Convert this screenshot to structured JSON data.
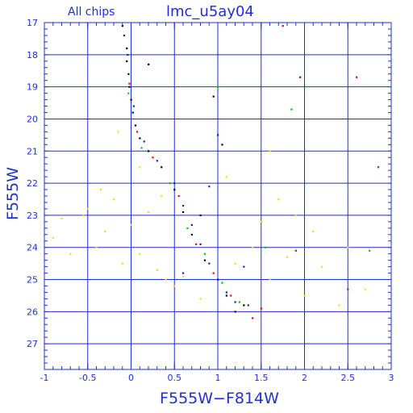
{
  "header": {
    "subtitle": "All chips",
    "title": "lmc_u5ay04"
  },
  "chart_data": {
    "type": "scatter",
    "title": "lmc_u5ay04",
    "subtitle": "All chips",
    "xlabel": "F555W−F814W",
    "ylabel": "F555W",
    "xlim": [
      -1,
      3
    ],
    "ylim": [
      27.8,
      17
    ],
    "y_inverted": true,
    "grid": true,
    "xticks": [
      -1,
      -0.5,
      0,
      0.5,
      1,
      1.5,
      2,
      2.5,
      3
    ],
    "xtick_labels": [
      "-1",
      "-0.5",
      "0",
      "0.5",
      "1",
      "1.5",
      "2",
      "2.5",
      "3"
    ],
    "yticks": [
      17,
      18,
      19,
      20,
      21,
      22,
      23,
      24,
      25,
      26,
      27
    ],
    "ytick_labels": [
      "17",
      "18",
      "19",
      "20",
      "21",
      "22",
      "23",
      "24",
      "25",
      "26",
      "27"
    ],
    "colors": {
      "axis": "#1f2fd6",
      "grid": "#1f2fd6",
      "black": "#000000",
      "red": "#e8001c",
      "green": "#00c800",
      "blue": "#1a1ad6",
      "yellow": "#e6e600"
    },
    "series": [
      {
        "color_key": "black",
        "points": [
          {
            "x": -0.1,
            "y": 17.1
          },
          {
            "x": -0.08,
            "y": 17.4
          },
          {
            "x": -0.05,
            "y": 17.8
          },
          {
            "x": -0.05,
            "y": 18.2
          },
          {
            "x": -0.03,
            "y": 18.6
          },
          {
            "x": -0.02,
            "y": 19.0
          },
          {
            "x": 0.0,
            "y": 19.4
          },
          {
            "x": 0.02,
            "y": 19.8
          },
          {
            "x": 0.05,
            "y": 20.2
          },
          {
            "x": 0.1,
            "y": 20.6
          },
          {
            "x": 0.2,
            "y": 21.0
          },
          {
            "x": 0.35,
            "y": 21.5
          },
          {
            "x": 0.5,
            "y": 22.2
          },
          {
            "x": 0.6,
            "y": 22.9
          },
          {
            "x": 0.7,
            "y": 23.6
          },
          {
            "x": 0.85,
            "y": 24.4
          },
          {
            "x": 1.0,
            "y": 25.0
          },
          {
            "x": 1.1,
            "y": 25.5
          },
          {
            "x": 1.3,
            "y": 25.8
          },
          {
            "x": 0.2,
            "y": 18.3
          },
          {
            "x": 0.95,
            "y": 19.3
          },
          {
            "x": 1.05,
            "y": 20.8
          },
          {
            "x": 0.8,
            "y": 23.0
          },
          {
            "x": 1.2,
            "y": 26.0
          }
        ]
      },
      {
        "color_key": "red",
        "points": [
          {
            "x": -0.02,
            "y": 18.9
          },
          {
            "x": 0.07,
            "y": 20.4
          },
          {
            "x": 0.25,
            "y": 21.2
          },
          {
            "x": 0.55,
            "y": 22.4
          },
          {
            "x": 0.75,
            "y": 23.9
          },
          {
            "x": 0.95,
            "y": 24.8
          },
          {
            "x": 1.15,
            "y": 25.5
          },
          {
            "x": 1.5,
            "y": 25.9
          },
          {
            "x": 1.75,
            "y": 17.1
          },
          {
            "x": 2.6,
            "y": 18.7
          },
          {
            "x": 2.85,
            "y": 21.5
          },
          {
            "x": 1.9,
            "y": 24.1
          },
          {
            "x": 2.5,
            "y": 25.3
          },
          {
            "x": 1.4,
            "y": 26.2
          }
        ]
      },
      {
        "color_key": "green",
        "points": [
          {
            "x": -0.03,
            "y": 19.2
          },
          {
            "x": 0.12,
            "y": 20.9
          },
          {
            "x": 0.45,
            "y": 22.0
          },
          {
            "x": 0.65,
            "y": 23.4
          },
          {
            "x": 0.85,
            "y": 24.2
          },
          {
            "x": 1.05,
            "y": 25.1
          },
          {
            "x": 1.25,
            "y": 25.7
          },
          {
            "x": 1.0,
            "y": 19.0
          },
          {
            "x": 1.85,
            "y": 19.7
          },
          {
            "x": 2.75,
            "y": 24.1
          },
          {
            "x": 1.55,
            "y": 24.0
          },
          {
            "x": 0.5,
            "y": 25.2
          }
        ]
      },
      {
        "color_key": "blue",
        "points": [
          {
            "x": -0.04,
            "y": 18.0
          },
          {
            "x": 0.03,
            "y": 19.6
          },
          {
            "x": 0.15,
            "y": 20.7
          },
          {
            "x": 0.3,
            "y": 21.3
          },
          {
            "x": 0.5,
            "y": 22.0
          },
          {
            "x": 0.6,
            "y": 22.7
          },
          {
            "x": 0.7,
            "y": 23.3
          },
          {
            "x": 0.8,
            "y": 23.9
          },
          {
            "x": 0.9,
            "y": 24.5
          },
          {
            "x": 1.0,
            "y": 25.0
          },
          {
            "x": 1.1,
            "y": 25.4
          },
          {
            "x": 1.2,
            "y": 25.7
          },
          {
            "x": 1.35,
            "y": 25.8
          },
          {
            "x": 1.0,
            "y": 20.5
          },
          {
            "x": 1.95,
            "y": 18.7
          },
          {
            "x": 0.9,
            "y": 22.1
          },
          {
            "x": 1.3,
            "y": 24.6
          },
          {
            "x": 0.6,
            "y": 24.8
          }
        ]
      },
      {
        "color_key": "yellow",
        "points": [
          {
            "x": -0.9,
            "y": 23.7
          },
          {
            "x": -0.8,
            "y": 23.1
          },
          {
            "x": -0.7,
            "y": 24.2
          },
          {
            "x": -0.55,
            "y": 23.0
          },
          {
            "x": -0.5,
            "y": 22.8
          },
          {
            "x": -0.4,
            "y": 24.0
          },
          {
            "x": -0.3,
            "y": 23.5
          },
          {
            "x": -0.2,
            "y": 22.5
          },
          {
            "x": -0.1,
            "y": 24.5
          },
          {
            "x": 0.0,
            "y": 23.3
          },
          {
            "x": 0.1,
            "y": 24.2
          },
          {
            "x": 0.2,
            "y": 22.9
          },
          {
            "x": 0.3,
            "y": 24.7
          },
          {
            "x": 0.4,
            "y": 25.0
          },
          {
            "x": 0.5,
            "y": 25.2
          },
          {
            "x": 0.6,
            "y": 24.9
          },
          {
            "x": 1.2,
            "y": 24.5
          },
          {
            "x": 1.4,
            "y": 24.0
          },
          {
            "x": 1.6,
            "y": 25.0
          },
          {
            "x": 1.8,
            "y": 24.3
          },
          {
            "x": 2.0,
            "y": 25.5
          },
          {
            "x": 2.2,
            "y": 24.6
          },
          {
            "x": 2.4,
            "y": 25.8
          },
          {
            "x": 2.7,
            "y": 25.3
          },
          {
            "x": -0.15,
            "y": 20.4
          },
          {
            "x": 0.1,
            "y": 21.5
          },
          {
            "x": 1.1,
            "y": 21.8
          },
          {
            "x": 1.6,
            "y": 21.0
          },
          {
            "x": 1.7,
            "y": 22.5
          },
          {
            "x": 1.5,
            "y": 23.2
          },
          {
            "x": 2.1,
            "y": 23.5
          },
          {
            "x": 2.5,
            "y": 24.0
          },
          {
            "x": -0.35,
            "y": 22.2
          },
          {
            "x": 0.35,
            "y": 22.4
          },
          {
            "x": 0.8,
            "y": 25.6
          },
          {
            "x": 1.9,
            "y": 23.0
          }
        ]
      }
    ]
  }
}
